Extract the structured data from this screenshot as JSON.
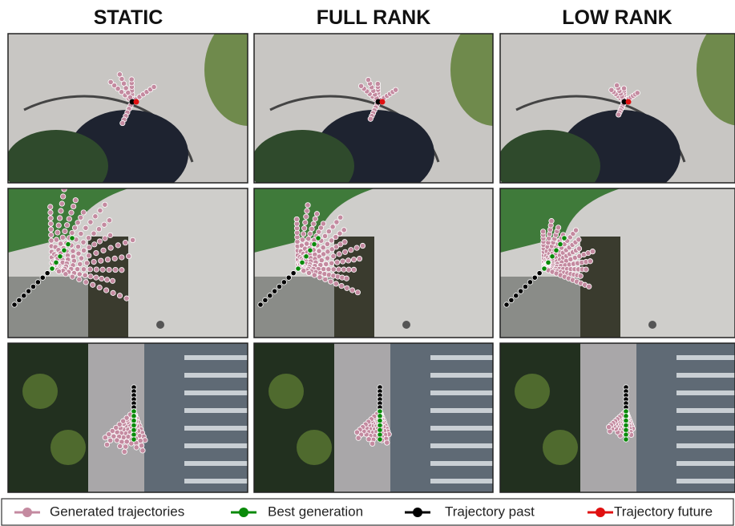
{
  "columns": [
    "STATIC",
    "FULL RANK",
    "LOW RANK"
  ],
  "legend": [
    {
      "label": "Generated trajectories",
      "color": "#c48aa0"
    },
    {
      "label": "Best generation",
      "color": "#0a8a0a"
    },
    {
      "label": "Trajectory past",
      "color": "#000000"
    },
    {
      "label": "Trajectory future",
      "color": "#e01010"
    }
  ]
}
